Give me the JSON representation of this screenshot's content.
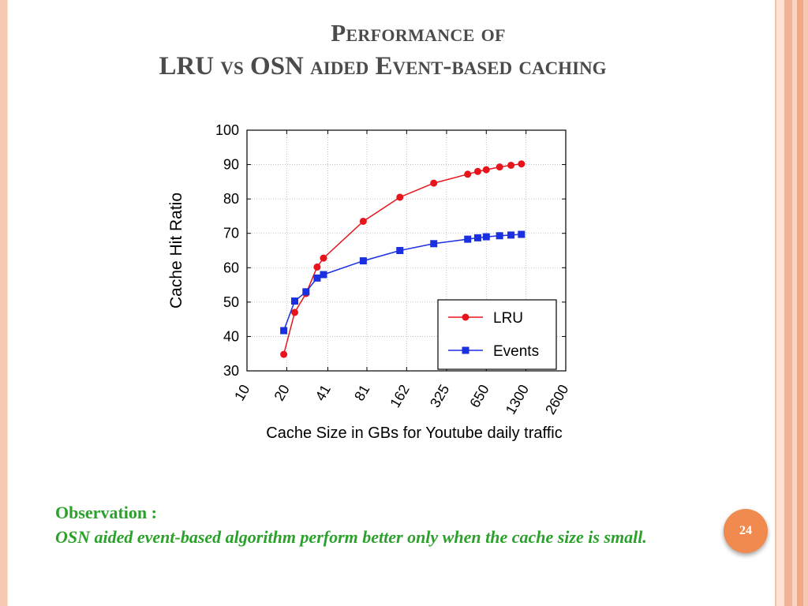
{
  "slide": {
    "title_line1": "Performance of",
    "title_line2": "LRU vs OSN aided Event-based caching",
    "observation_heading": "Observation :",
    "observation_text": "OSN aided event-based algorithm perform better only when the cache size is small.",
    "page_number": "24",
    "title_color": "#4b4b4b",
    "observation_color": "#2ba12b",
    "badge_color": "#f08a4f"
  },
  "chart_data": {
    "type": "line",
    "title": "",
    "xlabel": "Cache Size in GBs for Youtube daily traffic",
    "ylabel": "Cache Hit Ratio",
    "x_scale": "log2",
    "x_ticks": [
      10,
      20,
      41,
      81,
      162,
      325,
      650,
      1300,
      2600
    ],
    "y_ticks": [
      30,
      40,
      50,
      60,
      70,
      80,
      90,
      100
    ],
    "ylim": [
      30,
      100
    ],
    "grid": true,
    "legend_position": "bottom-right",
    "series": [
      {
        "name": "LRU",
        "color": "#e8141c",
        "marker": "circle",
        "x": [
          19,
          23,
          28,
          34,
          38,
          76,
          144,
          260,
          470,
          560,
          650,
          820,
          1000,
          1200
        ],
        "y": [
          34.8,
          47,
          52.5,
          60.2,
          62.8,
          73.5,
          80.5,
          84.6,
          87.2,
          88,
          88.5,
          89.3,
          89.8,
          90.2
        ]
      },
      {
        "name": "Events",
        "color": "#1a2fe0",
        "marker": "square",
        "x": [
          19,
          23,
          28,
          34,
          38,
          76,
          144,
          260,
          470,
          560,
          650,
          820,
          1000,
          1200
        ],
        "y": [
          41.7,
          50.3,
          53,
          57,
          58,
          62,
          65,
          67,
          68.3,
          68.7,
          69,
          69.3,
          69.5,
          69.7
        ]
      }
    ]
  }
}
